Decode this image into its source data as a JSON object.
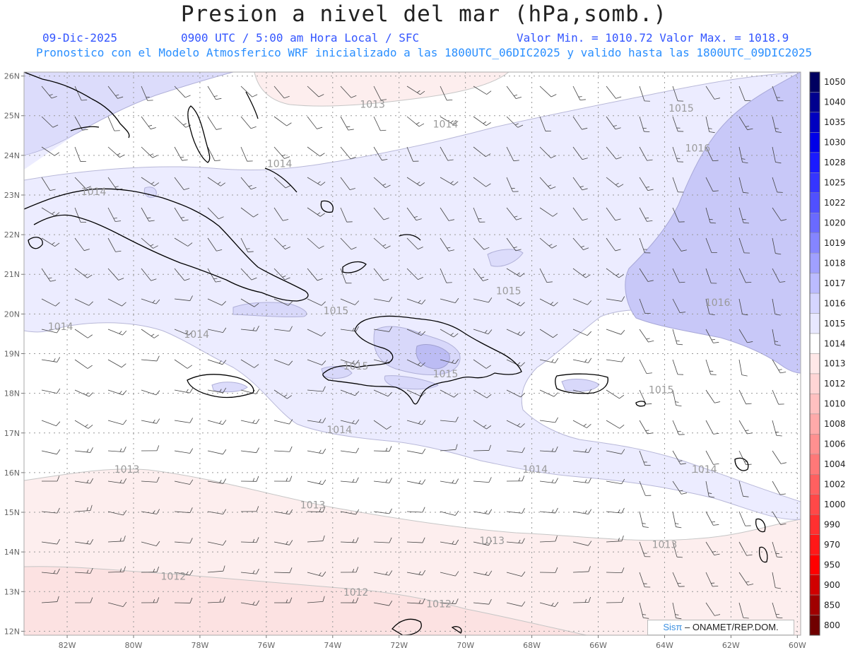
{
  "title": "Presion a nivel del mar (hPa,somb.)",
  "header": {
    "date": "09-Dic-2025",
    "time": "0900 UTC / 5:00 am Hora Local / SFC",
    "minmax": "Valor Min. = 1010.72  Valor Max. = 1018.9",
    "forecast": "Pronostico con el Modelo Atmosferico WRF inicializado a las 1800UTC_06DIC2025 y valido hasta las  1800UTC_09DIC2025"
  },
  "axes": {
    "lon_ticks": [
      "82W",
      "80W",
      "78W",
      "76W",
      "74W",
      "72W",
      "70W",
      "68W",
      "66W",
      "64W",
      "62W",
      "60W"
    ],
    "lat_ticks": [
      "26N",
      "25N",
      "24N",
      "23N",
      "22N",
      "21N",
      "20N",
      "19N",
      "18N",
      "17N",
      "16N",
      "15N",
      "14N",
      "13N",
      "12N"
    ]
  },
  "contour_labels": [
    {
      "text": "1013",
      "lon": -72.8,
      "lat": 25.2
    },
    {
      "text": "1014",
      "lon": -70.6,
      "lat": 24.7
    },
    {
      "text": "1015",
      "lon": -63.5,
      "lat": 25.1
    },
    {
      "text": "1016",
      "lon": -63.0,
      "lat": 24.1
    },
    {
      "text": "1014",
      "lon": -75.6,
      "lat": 23.7
    },
    {
      "text": "1014",
      "lon": -81.2,
      "lat": 23.0
    },
    {
      "text": "1015",
      "lon": -68.7,
      "lat": 20.5
    },
    {
      "text": "1016",
      "lon": -62.4,
      "lat": 20.2
    },
    {
      "text": "1015",
      "lon": -73.9,
      "lat": 20.0
    },
    {
      "text": "1014",
      "lon": -82.2,
      "lat": 19.6
    },
    {
      "text": "1014",
      "lon": -78.1,
      "lat": 19.4
    },
    {
      "text": "1015",
      "lon": -73.3,
      "lat": 18.6
    },
    {
      "text": "1015",
      "lon": -70.6,
      "lat": 18.4
    },
    {
      "text": "1015",
      "lon": -64.1,
      "lat": 18.0
    },
    {
      "text": "1014",
      "lon": -73.8,
      "lat": 17.0
    },
    {
      "text": "1014",
      "lon": -67.9,
      "lat": 16.0
    },
    {
      "text": "1014",
      "lon": -62.8,
      "lat": 16.0
    },
    {
      "text": "1013",
      "lon": -80.2,
      "lat": 16.0
    },
    {
      "text": "1013",
      "lon": -74.6,
      "lat": 15.1
    },
    {
      "text": "1013",
      "lon": -69.2,
      "lat": 14.2
    },
    {
      "text": "1013",
      "lon": -64.0,
      "lat": 14.1
    },
    {
      "text": "1012",
      "lon": -78.8,
      "lat": 13.3
    },
    {
      "text": "1012",
      "lon": -73.3,
      "lat": 12.9
    },
    {
      "text": "1012",
      "lon": -70.8,
      "lat": 12.6
    }
  ],
  "colorbar": {
    "labels": [
      "1050",
      "1040",
      "1035",
      "1030",
      "1028",
      "1025",
      "1022",
      "1020",
      "1019",
      "1018",
      "1017",
      "1016",
      "1015",
      "1014",
      "1013",
      "1012",
      "1010",
      "1008",
      "1006",
      "1004",
      "1002",
      "1000",
      "990",
      "970",
      "950",
      "900",
      "850",
      "800"
    ],
    "colors": [
      "#000060",
      "#00008e",
      "#0000c0",
      "#0000e8",
      "#1a1aff",
      "#3535ff",
      "#5050ff",
      "#6a6aff",
      "#8585ff",
      "#a0a0ff",
      "#bbbbff",
      "#d5d5ff",
      "#e8e8ff",
      "#ffffff",
      "#ffe8e8",
      "#ffd5d5",
      "#ffc0c0",
      "#ffaaaa",
      "#ff9090",
      "#ff7878",
      "#ff6060",
      "#ff4848",
      "#ff3030",
      "#ff1818",
      "#ff0000",
      "#d00000",
      "#a00000",
      "#700000"
    ]
  },
  "credit": {
    "logo": "Sisπ",
    "text": "– ONAMET/REP.DOM."
  }
}
